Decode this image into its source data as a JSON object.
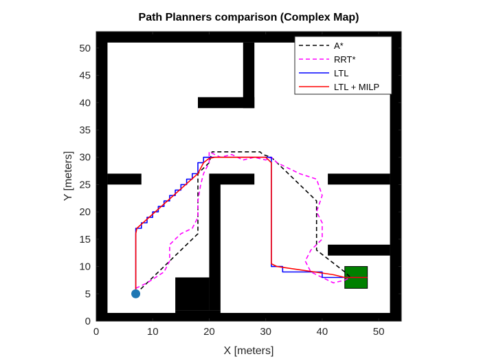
{
  "chart_data": {
    "type": "line",
    "title": "Path Planners comparison (Complex Map)",
    "xlabel": "X [meters]",
    "ylabel": "Y [meters]",
    "xlim": [
      0,
      54
    ],
    "ylim": [
      0,
      53
    ],
    "xticks": [
      "0",
      "10",
      "20",
      "30",
      "40",
      "50"
    ],
    "yticks": [
      "0",
      "5",
      "10",
      "15",
      "20",
      "25",
      "30",
      "35",
      "40",
      "45",
      "50"
    ],
    "grid": false,
    "legend_position": "top-right",
    "obstacles": [
      {
        "x": [
          0,
          2
        ],
        "y": [
          0,
          53
        ]
      },
      {
        "x": [
          52,
          54
        ],
        "y": [
          0,
          53
        ]
      },
      {
        "x": [
          0,
          54
        ],
        "y": [
          0,
          1.5
        ]
      },
      {
        "x": [
          0,
          54
        ],
        "y": [
          51,
          53
        ]
      },
      {
        "x": [
          2,
          8
        ],
        "y": [
          25,
          27
        ]
      },
      {
        "x": [
          18,
          28
        ],
        "y": [
          39,
          41
        ]
      },
      {
        "x": [
          26,
          28
        ],
        "y": [
          39,
          51
        ]
      },
      {
        "x": [
          20,
          22
        ],
        "y": [
          2,
          27
        ]
      },
      {
        "x": [
          20,
          28
        ],
        "y": [
          25,
          27
        ]
      },
      {
        "x": [
          14,
          20
        ],
        "y": [
          2,
          8
        ]
      },
      {
        "x": [
          14,
          22
        ],
        "y": [
          0,
          2
        ]
      },
      {
        "x": [
          41,
          52
        ],
        "y": [
          25,
          27
        ]
      },
      {
        "x": [
          41,
          52
        ],
        "y": [
          12,
          14
        ]
      }
    ],
    "start": {
      "x": 7,
      "y": 5,
      "color": "#1f77b4"
    },
    "goal": {
      "x": [
        44,
        48
      ],
      "y": [
        6,
        10
      ],
      "color": "#008000"
    },
    "series": [
      {
        "name": "A*",
        "color": "#000000",
        "style": "dashed",
        "x": [
          7,
          18,
          18,
          20,
          20.5,
          29,
          29.5,
          31,
          39,
          39,
          44,
          45
        ],
        "y": [
          5,
          16,
          27,
          29,
          31,
          31,
          30.5,
          30,
          22,
          13,
          9,
          8
        ]
      },
      {
        "name": "RRT*",
        "color": "#ff00ff",
        "style": "dashed",
        "x": [
          7,
          9,
          12,
          13,
          13,
          15,
          17,
          18,
          18,
          18.5,
          19,
          20,
          20,
          22,
          24,
          26,
          28,
          30,
          31,
          32,
          34,
          36,
          39,
          40,
          39,
          40,
          40,
          38,
          37,
          38,
          40,
          42,
          44,
          45
        ],
        "y": [
          6,
          7,
          9,
          11,
          14,
          16,
          17,
          19,
          22,
          25,
          27,
          29,
          31,
          30,
          30.5,
          29.5,
          30,
          29.5,
          30,
          29,
          28,
          27,
          26,
          23,
          20,
          18,
          15,
          13,
          11,
          9,
          8,
          7,
          7.5,
          8
        ]
      },
      {
        "name": "LTL",
        "color": "#0000ff",
        "style": "solid",
        "x": [
          7,
          7,
          8,
          8,
          9,
          9,
          10,
          10,
          11,
          11,
          12,
          12,
          13,
          13,
          14,
          14,
          15,
          15,
          16,
          16,
          17,
          17,
          18,
          18,
          19,
          19,
          20,
          20,
          21,
          30,
          31,
          31,
          33,
          33,
          40,
          40,
          46,
          48
        ],
        "y": [
          5,
          17,
          17,
          18,
          18,
          19,
          19,
          20,
          20,
          21,
          21,
          22,
          22,
          23,
          23,
          24,
          24,
          25,
          25,
          26,
          26,
          27,
          27,
          29,
          29,
          30,
          30,
          30,
          30,
          30,
          30,
          10,
          10,
          9,
          9,
          8,
          8,
          8
        ]
      },
      {
        "name": "LTL + MILP",
        "color": "#ff0000",
        "style": "solid",
        "x": [
          7,
          7,
          7.2,
          18,
          19,
          20,
          21,
          30,
          31,
          31,
          32,
          42,
          44,
          48
        ],
        "y": [
          5.5,
          16,
          17,
          27,
          29,
          29.8,
          30,
          30,
          29,
          10.5,
          10,
          8.5,
          8,
          8
        ]
      }
    ]
  }
}
